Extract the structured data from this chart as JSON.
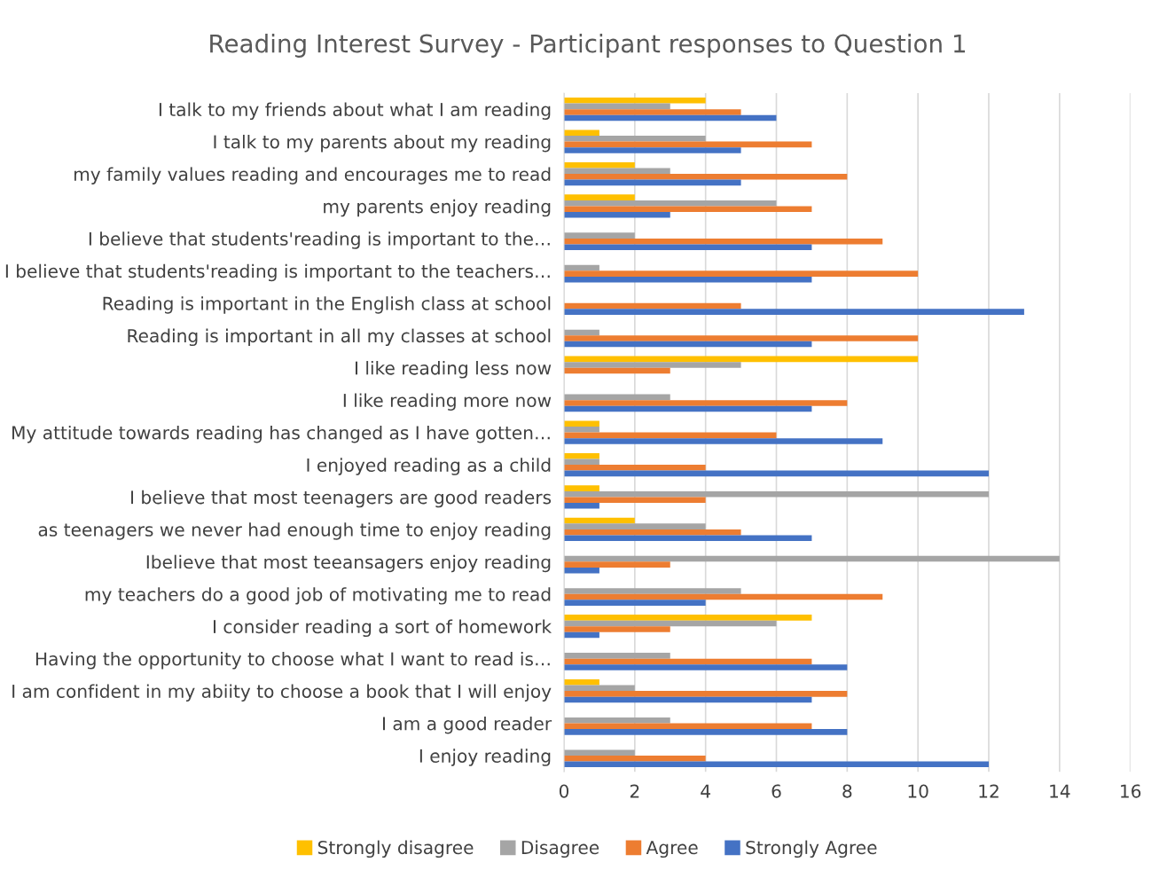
{
  "chart_data": {
    "type": "bar",
    "orientation": "horizontal",
    "title": "Reading Interest Survey - Participant responses to Question 1",
    "categories": [
      "I talk to my friends about what I am reading",
      "I talk to my parents about my reading",
      "my family values reading and encourages me to read",
      "my parents enjoy reading",
      "I believe that students'reading is important to the…",
      "I believe that students'reading is important to the teachers…",
      "Reading is important in the English class at school",
      "Reading is important in all my classes at school",
      "I like reading less now",
      "I like reading more now",
      "My attitude towards reading has changed as I have gotten…",
      "I enjoyed reading as a child",
      "I believe that most teenagers are good readers",
      "as teenagers we never had enough time to enjoy reading",
      "Ibelieve that most teeansagers enjoy reading",
      "my teachers do a good job of motivating me to read",
      "I consider reading a sort of homework",
      "Having the opportunity to choose what I want to read is…",
      "I am confident in my abiity to choose a book that I will enjoy",
      "I am a good reader",
      "I enjoy reading"
    ],
    "series": [
      {
        "name": "Strongly disagree",
        "color": "#ffc000",
        "values": [
          4,
          1,
          2,
          2,
          0,
          0,
          0,
          0,
          10,
          0,
          1,
          1,
          1,
          2,
          0,
          0,
          7,
          0,
          1,
          0,
          0
        ]
      },
      {
        "name": "Disagree",
        "color": "#a5a5a5",
        "values": [
          3,
          4,
          3,
          6,
          2,
          1,
          0,
          1,
          5,
          3,
          1,
          1,
          12,
          4,
          14,
          5,
          6,
          3,
          2,
          3,
          2
        ]
      },
      {
        "name": "Agree",
        "color": "#ed7d31",
        "values": [
          5,
          7,
          8,
          7,
          9,
          10,
          5,
          10,
          3,
          8,
          6,
          4,
          4,
          5,
          3,
          9,
          3,
          7,
          8,
          7,
          4
        ]
      },
      {
        "name": "Strongly Agree",
        "color": "#4472c4",
        "values": [
          6,
          5,
          5,
          3,
          7,
          7,
          13,
          7,
          0,
          7,
          9,
          12,
          1,
          7,
          1,
          4,
          1,
          8,
          7,
          8,
          12
        ]
      }
    ],
    "xlim": [
      0,
      16
    ],
    "xticks": [
      0,
      2,
      4,
      6,
      8,
      10,
      12,
      14,
      16
    ],
    "grid": "x",
    "legend": "bottom"
  }
}
